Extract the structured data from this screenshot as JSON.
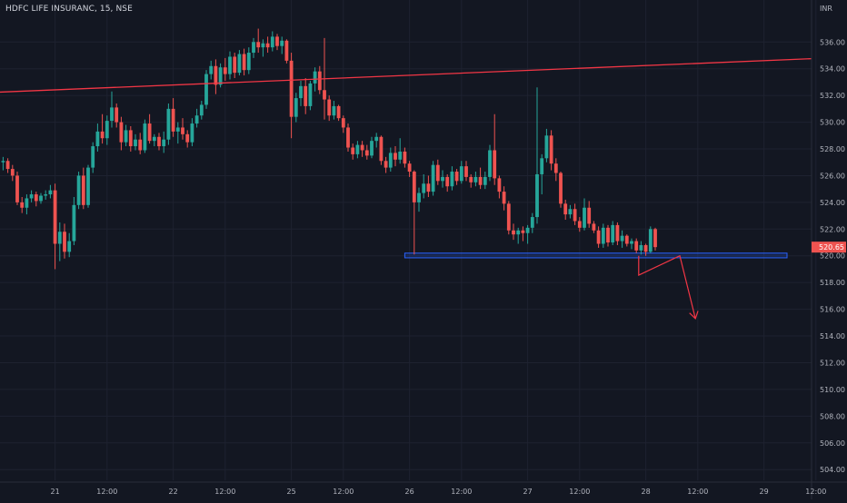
{
  "chart_data": {
    "type": "candlestick",
    "title": "HDFC LIFE INSURANC, 15, NSE",
    "currency": "INR",
    "ylim": [
      503.2,
      538.6
    ],
    "y_ticks": [
      "536.00",
      "534.00",
      "532.00",
      "530.00",
      "528.00",
      "526.00",
      "524.00",
      "522.00",
      "520.00",
      "518.00",
      "516.00",
      "514.00",
      "512.00",
      "510.00",
      "508.00",
      "506.00",
      "504.00"
    ],
    "x_ticks": [
      {
        "label": "21",
        "bar": 11
      },
      {
        "label": "12:00",
        "bar": 22
      },
      {
        "label": "22",
        "bar": 36
      },
      {
        "label": "12:00",
        "bar": 47
      },
      {
        "label": "25",
        "bar": 61
      },
      {
        "label": "12:00",
        "bar": 72
      },
      {
        "label": "26",
        "bar": 86
      },
      {
        "label": "12:00",
        "bar": 97
      },
      {
        "label": "27",
        "bar": 111
      },
      {
        "label": "12:00",
        "bar": 122
      },
      {
        "label": "28",
        "bar": 136
      },
      {
        "label": "12:00",
        "bar": 147
      },
      {
        "label": "29",
        "bar": 161
      },
      {
        "label": "12:00",
        "bar": 172
      }
    ],
    "last_price": "520.65",
    "colors": {
      "up": "#26a69a",
      "down": "#ef5350",
      "trendline": "#f23645",
      "zone": "#2962ff",
      "background": "#131722",
      "grid": "#1e2230"
    },
    "candles": [
      [
        527.0,
        527.4,
        526.4,
        527.1
      ],
      [
        527.1,
        527.3,
        526.2,
        526.5
      ],
      [
        526.5,
        526.8,
        525.6,
        526.0
      ],
      [
        526.0,
        526.3,
        523.8,
        524.0
      ],
      [
        524.0,
        524.4,
        523.2,
        523.6
      ],
      [
        523.6,
        524.6,
        523.1,
        524.3
      ],
      [
        524.3,
        524.9,
        524.0,
        524.6
      ],
      [
        524.6,
        524.8,
        523.7,
        524.1
      ],
      [
        524.1,
        524.7,
        523.9,
        524.5
      ],
      [
        524.5,
        524.9,
        524.2,
        524.6
      ],
      [
        524.6,
        525.3,
        524.3,
        524.9
      ],
      [
        524.9,
        525.4,
        519.0,
        520.9
      ],
      [
        520.9,
        522.5,
        519.6,
        521.8
      ],
      [
        521.8,
        522.4,
        519.8,
        520.3
      ],
      [
        520.3,
        521.7,
        519.9,
        521.1
      ],
      [
        521.1,
        524.4,
        520.8,
        523.8
      ],
      [
        523.8,
        526.3,
        523.5,
        526.0
      ],
      [
        526.0,
        526.6,
        523.5,
        523.8
      ],
      [
        523.8,
        526.8,
        523.6,
        526.6
      ],
      [
        526.6,
        528.5,
        526.2,
        528.2
      ],
      [
        528.2,
        529.9,
        527.8,
        529.3
      ],
      [
        529.3,
        530.6,
        528.4,
        528.8
      ],
      [
        528.8,
        530.5,
        528.3,
        530.1
      ],
      [
        530.1,
        532.3,
        529.6,
        531.1
      ],
      [
        531.1,
        531.4,
        529.6,
        530.0
      ],
      [
        530.0,
        530.4,
        527.9,
        528.5
      ],
      [
        528.5,
        529.8,
        528.2,
        529.4
      ],
      [
        529.4,
        529.7,
        527.8,
        528.2
      ],
      [
        528.2,
        529.1,
        527.9,
        528.7
      ],
      [
        528.7,
        529.2,
        527.6,
        527.9
      ],
      [
        527.9,
        530.2,
        527.7,
        529.9
      ],
      [
        529.9,
        530.6,
        528.4,
        528.6
      ],
      [
        528.6,
        529.1,
        528.2,
        528.9
      ],
      [
        528.9,
        529.2,
        527.9,
        528.2
      ],
      [
        528.2,
        529.3,
        527.7,
        528.7
      ],
      [
        528.7,
        531.4,
        528.3,
        531.0
      ],
      [
        531.0,
        531.8,
        528.9,
        529.3
      ],
      [
        529.3,
        530.0,
        528.4,
        529.6
      ],
      [
        529.6,
        530.3,
        528.7,
        529.1
      ],
      [
        529.1,
        529.4,
        528.1,
        528.5
      ],
      [
        528.5,
        530.3,
        528.2,
        529.9
      ],
      [
        529.9,
        531.0,
        529.6,
        530.5
      ],
      [
        530.5,
        531.6,
        530.2,
        531.3
      ],
      [
        531.3,
        533.9,
        531.0,
        533.6
      ],
      [
        533.6,
        534.6,
        533.2,
        534.2
      ],
      [
        534.2,
        534.7,
        532.1,
        532.8
      ],
      [
        532.8,
        534.4,
        532.6,
        534.1
      ],
      [
        534.1,
        534.8,
        533.1,
        533.6
      ],
      [
        533.6,
        535.3,
        533.2,
        534.9
      ],
      [
        534.9,
        535.2,
        533.3,
        533.7
      ],
      [
        533.7,
        535.4,
        533.5,
        535.1
      ],
      [
        535.1,
        535.5,
        533.5,
        533.9
      ],
      [
        533.9,
        535.6,
        533.6,
        535.2
      ],
      [
        535.2,
        536.3,
        534.8,
        536.0
      ],
      [
        536.0,
        537.0,
        535.2,
        535.6
      ],
      [
        535.6,
        536.2,
        534.9,
        535.9
      ],
      [
        535.9,
        536.4,
        535.2,
        535.6
      ],
      [
        535.6,
        536.8,
        535.3,
        536.4
      ],
      [
        536.4,
        536.6,
        535.4,
        535.7
      ],
      [
        535.7,
        536.4,
        535.1,
        536.1
      ],
      [
        536.1,
        536.2,
        534.4,
        534.6
      ],
      [
        534.6,
        535.2,
        528.8,
        530.4
      ],
      [
        530.4,
        532.2,
        530.0,
        531.8
      ],
      [
        531.8,
        533.1,
        531.2,
        532.7
      ],
      [
        532.7,
        533.3,
        530.6,
        531.2
      ],
      [
        531.2,
        533.1,
        530.9,
        532.9
      ],
      [
        532.9,
        534.1,
        532.3,
        533.8
      ],
      [
        533.8,
        534.2,
        532.1,
        532.4
      ],
      [
        532.4,
        536.3,
        530.2,
        531.7
      ],
      [
        531.7,
        532.0,
        530.1,
        530.5
      ],
      [
        530.5,
        531.6,
        530.2,
        531.2
      ],
      [
        531.2,
        531.3,
        530.1,
        530.3
      ],
      [
        530.3,
        530.5,
        529.2,
        529.6
      ],
      [
        529.6,
        529.9,
        527.8,
        528.1
      ],
      [
        528.1,
        528.4,
        527.2,
        527.6
      ],
      [
        527.6,
        528.6,
        527.3,
        528.3
      ],
      [
        528.3,
        528.6,
        527.4,
        527.9
      ],
      [
        527.9,
        528.3,
        527.2,
        527.5
      ],
      [
        527.5,
        528.9,
        527.3,
        528.6
      ],
      [
        528.6,
        529.2,
        528.1,
        528.9
      ],
      [
        528.9,
        529.0,
        526.8,
        527.1
      ],
      [
        527.1,
        527.4,
        526.2,
        526.6
      ],
      [
        526.6,
        528.1,
        526.3,
        527.7
      ],
      [
        527.7,
        528.2,
        526.7,
        527.2
      ],
      [
        527.2,
        528.8,
        526.9,
        527.8
      ],
      [
        527.8,
        528.1,
        526.6,
        526.9
      ],
      [
        526.9,
        527.1,
        525.9,
        526.3
      ],
      [
        526.3,
        526.4,
        520.1,
        524.0
      ],
      [
        524.0,
        525.1,
        523.3,
        524.7
      ],
      [
        524.7,
        526.1,
        524.3,
        525.4
      ],
      [
        525.4,
        526.0,
        524.4,
        524.8
      ],
      [
        524.8,
        527.1,
        524.5,
        526.8
      ],
      [
        526.8,
        527.2,
        525.3,
        525.6
      ],
      [
        525.6,
        526.4,
        525.1,
        525.9
      ],
      [
        525.9,
        526.1,
        524.8,
        525.2
      ],
      [
        525.2,
        526.7,
        524.9,
        526.3
      ],
      [
        526.3,
        526.5,
        525.3,
        525.6
      ],
      [
        525.6,
        527.1,
        525.4,
        526.7
      ],
      [
        526.7,
        527.1,
        525.6,
        525.9
      ],
      [
        525.9,
        526.1,
        525.1,
        525.5
      ],
      [
        525.5,
        526.3,
        525.2,
        525.9
      ],
      [
        525.9,
        526.6,
        525.0,
        525.3
      ],
      [
        525.3,
        526.3,
        525.0,
        525.9
      ],
      [
        525.9,
        528.3,
        525.6,
        527.9
      ],
      [
        527.9,
        530.6,
        525.3,
        525.8
      ],
      [
        525.8,
        526.0,
        524.3,
        524.8
      ],
      [
        524.8,
        525.2,
        523.4,
        523.9
      ],
      [
        523.9,
        524.1,
        521.6,
        521.9
      ],
      [
        521.9,
        522.4,
        521.2,
        521.6
      ],
      [
        521.6,
        522.1,
        520.9,
        521.9
      ],
      [
        521.9,
        522.2,
        521.1,
        521.7
      ],
      [
        521.7,
        522.3,
        520.9,
        522.1
      ],
      [
        522.1,
        523.2,
        521.7,
        522.9
      ],
      [
        522.9,
        532.6,
        522.4,
        526.1
      ],
      [
        526.1,
        527.6,
        524.6,
        527.3
      ],
      [
        527.3,
        529.5,
        527.0,
        529.0
      ],
      [
        529.0,
        529.4,
        526.4,
        526.9
      ],
      [
        526.9,
        527.3,
        525.6,
        526.2
      ],
      [
        526.2,
        526.3,
        523.6,
        523.9
      ],
      [
        523.9,
        524.2,
        522.7,
        523.1
      ],
      [
        523.1,
        523.8,
        522.8,
        523.5
      ],
      [
        523.5,
        523.9,
        522.3,
        522.6
      ],
      [
        522.6,
        522.9,
        521.8,
        522.1
      ],
      [
        522.1,
        524.3,
        521.9,
        523.6
      ],
      [
        523.6,
        524.1,
        522.1,
        522.4
      ],
      [
        522.4,
        522.6,
        521.7,
        521.9
      ],
      [
        521.9,
        522.2,
        520.6,
        520.9
      ],
      [
        520.9,
        522.4,
        520.6,
        522.1
      ],
      [
        522.1,
        522.3,
        520.7,
        521.0
      ],
      [
        521.0,
        522.6,
        520.8,
        522.3
      ],
      [
        522.3,
        522.5,
        520.8,
        521.1
      ],
      [
        521.1,
        521.9,
        520.6,
        521.5
      ],
      [
        521.5,
        521.6,
        520.7,
        520.9
      ],
      [
        520.9,
        521.3,
        520.5,
        521.1
      ],
      [
        521.1,
        521.3,
        520.2,
        520.4
      ],
      [
        520.4,
        521.1,
        520.1,
        520.8
      ],
      [
        520.8,
        520.9,
        520.0,
        520.3
      ],
      [
        520.3,
        522.2,
        520.2,
        522.0
      ],
      [
        522.0,
        522.1,
        520.4,
        520.65
      ]
    ]
  }
}
